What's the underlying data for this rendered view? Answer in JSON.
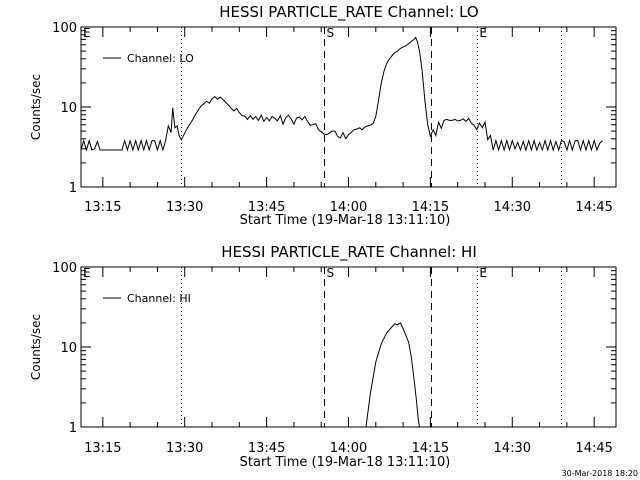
{
  "page": {
    "timestamp": "30-Mar-2018 18:20"
  },
  "chart_data": [
    {
      "type": "line",
      "title": "HESSI PARTICLE_RATE Channel: LO",
      "xlabel": "Start Time (19-Mar-18 13:11:10)",
      "ylabel": "Counts/sec",
      "yscale": "log",
      "ylim": [
        1,
        100
      ],
      "xlim_minutes": [
        0,
        98
      ],
      "x_ticks": [
        {
          "minute": 4,
          "label": "13:15"
        },
        {
          "minute": 19,
          "label": "13:30"
        },
        {
          "minute": 34,
          "label": "13:45"
        },
        {
          "minute": 49,
          "label": "14:00"
        },
        {
          "minute": 64,
          "label": "14:15"
        },
        {
          "minute": 79,
          "label": "14:30"
        },
        {
          "minute": 94,
          "label": "14:45"
        }
      ],
      "y_ticks": [
        {
          "value": 1,
          "label": "1"
        },
        {
          "value": 10,
          "label": "10"
        },
        {
          "value": 100,
          "label": "100"
        }
      ],
      "legend": "Channel: LO",
      "markers": [
        {
          "minute": 0,
          "label": "E",
          "style": "none"
        },
        {
          "minute": 18.4,
          "label": "",
          "style": "dotted"
        },
        {
          "minute": 44.6,
          "label": "S",
          "style": "dashed"
        },
        {
          "minute": 64.2,
          "label": "",
          "style": "dashed"
        },
        {
          "minute": 72.6,
          "label": "E",
          "style": "dotted"
        },
        {
          "minute": 88,
          "label": "",
          "style": "dotted"
        }
      ],
      "series": [
        {
          "name": "Channel: LO",
          "points": [
            [
              0,
              2.9
            ],
            [
              0.5,
              3.8
            ],
            [
              1,
              2.9
            ],
            [
              1.5,
              3.8
            ],
            [
              2,
              2.9
            ],
            [
              2.5,
              3.0
            ],
            [
              3,
              3.7
            ],
            [
              3.5,
              2.9
            ],
            [
              7.5,
              2.9
            ],
            [
              8,
              3.8
            ],
            [
              8.5,
              2.9
            ],
            [
              9,
              3.8
            ],
            [
              9.5,
              2.9
            ],
            [
              10,
              3.8
            ],
            [
              10.5,
              2.9
            ],
            [
              11,
              3.8
            ],
            [
              11.5,
              2.9
            ],
            [
              12,
              3.8
            ],
            [
              12.5,
              2.9
            ],
            [
              13,
              3.8
            ],
            [
              13.5,
              3.8
            ],
            [
              14,
              2.9
            ],
            [
              14.5,
              3.8
            ],
            [
              15,
              2.9
            ],
            [
              15.5,
              3.8
            ],
            [
              16,
              5.8
            ],
            [
              16.5,
              4.8
            ],
            [
              16.8,
              9.8
            ],
            [
              17.2,
              5.5
            ],
            [
              17.6,
              5.8
            ],
            [
              18,
              4.3
            ],
            [
              18.4,
              3.9
            ],
            [
              19,
              4.7
            ],
            [
              19.5,
              5.5
            ],
            [
              20,
              6.2
            ],
            [
              20.5,
              7.0
            ],
            [
              21,
              8.1
            ],
            [
              21.5,
              9.2
            ],
            [
              22,
              10.3
            ],
            [
              22.5,
              11.0
            ],
            [
              23,
              11.8
            ],
            [
              23.5,
              11.2
            ],
            [
              24,
              12.7
            ],
            [
              24.5,
              13.5
            ],
            [
              25,
              12.5
            ],
            [
              25.5,
              13.3
            ],
            [
              26,
              12.4
            ],
            [
              26.5,
              11.4
            ],
            [
              27,
              10.6
            ],
            [
              27.5,
              9.7
            ],
            [
              28,
              8.9
            ],
            [
              28.5,
              9.6
            ],
            [
              29,
              8.5
            ],
            [
              29.5,
              7.8
            ],
            [
              30,
              7.7
            ],
            [
              30.5,
              7.0
            ],
            [
              31,
              7.8
            ],
            [
              31.5,
              7.0
            ],
            [
              32,
              7.6
            ],
            [
              32.5,
              6.8
            ],
            [
              33,
              7.9
            ],
            [
              33.5,
              6.6
            ],
            [
              34,
              7.4
            ],
            [
              34.5,
              6.7
            ],
            [
              35,
              7.6
            ],
            [
              35.5,
              7.2
            ],
            [
              36,
              6.7
            ],
            [
              36.5,
              7.8
            ],
            [
              37,
              6.1
            ],
            [
              37.5,
              7.3
            ],
            [
              38,
              7.9
            ],
            [
              38.5,
              7.1
            ],
            [
              39,
              6.1
            ],
            [
              39.5,
              7.3
            ],
            [
              40,
              7.5
            ],
            [
              40.5,
              6.9
            ],
            [
              41,
              7.6
            ],
            [
              41.5,
              6.6
            ],
            [
              42,
              5.9
            ],
            [
              42.5,
              6.0
            ],
            [
              43,
              6.2
            ],
            [
              43.5,
              5.2
            ],
            [
              44,
              4.9
            ],
            [
              44.5,
              4.6
            ],
            [
              45,
              4.5
            ],
            [
              45.5,
              4.7
            ],
            [
              46,
              5.0
            ],
            [
              46.5,
              5.0
            ],
            [
              47,
              4.3
            ],
            [
              47.5,
              4.1
            ],
            [
              48,
              4.8
            ],
            [
              48.5,
              4.0
            ],
            [
              49,
              4.5
            ],
            [
              49.5,
              4.8
            ],
            [
              50,
              5.2
            ],
            [
              50.5,
              5.3
            ],
            [
              51,
              5.5
            ],
            [
              51.5,
              5.2
            ],
            [
              52,
              5.6
            ],
            [
              52.5,
              5.8
            ],
            [
              53,
              5.9
            ],
            [
              53.5,
              6.2
            ],
            [
              54,
              7.6
            ],
            [
              54.5,
              12.0
            ],
            [
              55,
              20.0
            ],
            [
              55.5,
              28.0
            ],
            [
              56,
              35.0
            ],
            [
              56.5,
              40.0
            ],
            [
              57,
              44.0
            ],
            [
              57.5,
              48.0
            ],
            [
              58,
              50.0
            ],
            [
              58.5,
              54.0
            ],
            [
              59,
              56.0
            ],
            [
              59.5,
              58.0
            ],
            [
              60,
              62.0
            ],
            [
              60.5,
              66.0
            ],
            [
              61,
              70.0
            ],
            [
              61.3,
              74.0
            ],
            [
              61.6,
              66.0
            ],
            [
              62,
              50.0
            ],
            [
              62.5,
              28.0
            ],
            [
              63,
              12.0
            ],
            [
              63.5,
              6.0
            ],
            [
              64,
              4.3
            ],
            [
              64.5,
              5.2
            ],
            [
              65,
              4.4
            ],
            [
              65.5,
              6.5
            ],
            [
              66,
              5.4
            ],
            [
              66.5,
              6.8
            ],
            [
              67,
              7.0
            ],
            [
              67.5,
              6.8
            ],
            [
              68,
              6.8
            ],
            [
              68.5,
              7.0
            ],
            [
              69,
              6.7
            ],
            [
              69.5,
              6.8
            ],
            [
              70,
              7.1
            ],
            [
              70.5,
              6.6
            ],
            [
              71,
              7.2
            ],
            [
              71.5,
              6.3
            ],
            [
              72,
              5.9
            ],
            [
              72.5,
              5.2
            ],
            [
              73,
              6.3
            ],
            [
              73.5,
              5.5
            ],
            [
              74,
              6.5
            ],
            [
              74.5,
              3.9
            ],
            [
              75,
              4.4
            ],
            [
              75.5,
              2.9
            ],
            [
              76,
              3.8
            ],
            [
              76.5,
              2.9
            ],
            [
              77,
              3.8
            ],
            [
              77.5,
              2.9
            ],
            [
              78,
              3.8
            ],
            [
              78.5,
              2.9
            ],
            [
              79,
              3.8
            ],
            [
              79.5,
              3.0
            ],
            [
              80,
              3.6
            ],
            [
              80.5,
              2.9
            ],
            [
              81,
              3.7
            ],
            [
              81.5,
              2.9
            ],
            [
              82,
              3.8
            ],
            [
              82.5,
              2.9
            ],
            [
              83,
              3.8
            ],
            [
              83.5,
              2.9
            ],
            [
              84,
              3.6
            ],
            [
              84.5,
              2.9
            ],
            [
              85,
              3.8
            ],
            [
              85.5,
              2.9
            ],
            [
              86,
              3.8
            ],
            [
              86.5,
              2.9
            ],
            [
              87,
              3.7
            ],
            [
              87.5,
              2.9
            ],
            [
              88,
              3.8
            ],
            [
              88.5,
              3.7
            ],
            [
              89,
              2.9
            ],
            [
              89.5,
              3.8
            ],
            [
              90,
              2.9
            ],
            [
              90.5,
              3.8
            ],
            [
              91,
              3.8
            ],
            [
              91.5,
              2.9
            ],
            [
              92,
              3.8
            ],
            [
              92.5,
              2.9
            ],
            [
              93,
              3.8
            ],
            [
              93.5,
              2.9
            ],
            [
              94,
              3.8
            ],
            [
              94.5,
              2.9
            ],
            [
              95,
              3.5
            ],
            [
              95.5,
              3.8
            ]
          ]
        }
      ]
    },
    {
      "type": "line",
      "title": "HESSI PARTICLE_RATE Channel: HI",
      "xlabel": "Start Time (19-Mar-18 13:11:10)",
      "ylabel": "Counts/sec",
      "yscale": "log",
      "ylim": [
        1,
        100
      ],
      "xlim_minutes": [
        0,
        98
      ],
      "x_ticks": [
        {
          "minute": 4,
          "label": "13:15"
        },
        {
          "minute": 19,
          "label": "13:30"
        },
        {
          "minute": 34,
          "label": "13:45"
        },
        {
          "minute": 49,
          "label": "14:00"
        },
        {
          "minute": 64,
          "label": "14:15"
        },
        {
          "minute": 79,
          "label": "14:30"
        },
        {
          "minute": 94,
          "label": "14:45"
        }
      ],
      "y_ticks": [
        {
          "value": 1,
          "label": "1"
        },
        {
          "value": 10,
          "label": "10"
        },
        {
          "value": 100,
          "label": "100"
        }
      ],
      "legend": "Channel: HI",
      "markers": [
        {
          "minute": 0,
          "label": "E",
          "style": "none"
        },
        {
          "minute": 18.4,
          "label": "",
          "style": "dotted"
        },
        {
          "minute": 44.6,
          "label": "S",
          "style": "dashed"
        },
        {
          "minute": 64.2,
          "label": "",
          "style": "dashed"
        },
        {
          "minute": 72.6,
          "label": "E",
          "style": "dotted"
        },
        {
          "minute": 88,
          "label": "",
          "style": "dotted"
        }
      ],
      "series": [
        {
          "name": "Channel: HI",
          "points": [
            [
              52.2,
              1.0
            ],
            [
              53.0,
              2.6
            ],
            [
              54.0,
              6.5
            ],
            [
              55.0,
              11.0
            ],
            [
              56.0,
              15.0
            ],
            [
              57.0,
              18.0
            ],
            [
              57.5,
              19.5
            ],
            [
              58.0,
              19.0
            ],
            [
              58.5,
              20.0
            ],
            [
              59.0,
              17.0
            ],
            [
              59.5,
              14.0
            ],
            [
              60.0,
              11.5
            ],
            [
              60.5,
              7.5
            ],
            [
              61.0,
              4.0
            ],
            [
              61.5,
              2.0
            ],
            [
              61.8,
              1.2
            ],
            [
              62.0,
              1.0
            ]
          ]
        }
      ]
    }
  ]
}
